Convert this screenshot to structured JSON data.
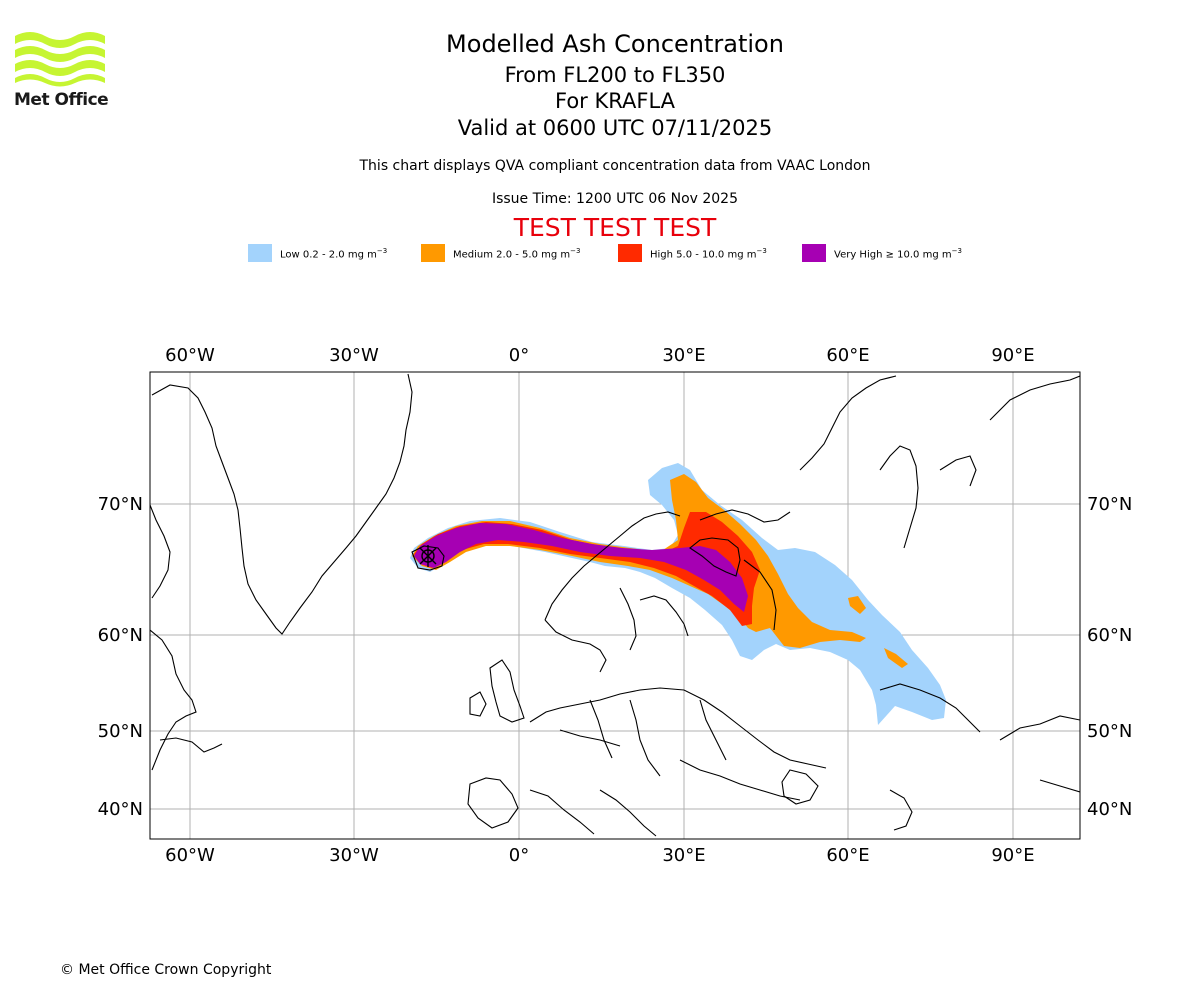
{
  "logo": {
    "text": "Met Office",
    "color": "#c6f532"
  },
  "title": "Modelled Ash Concentration",
  "subtitle_levels": "From FL200 to FL350",
  "subtitle_volcano": "For KRAFLA",
  "valid_time": "Valid at 0600 UTC 07/11/2025",
  "description": "This chart displays QVA compliant concentration data from VAAC London",
  "issue_time": "Issue Time: 1200 UTC 06 Nov 2025",
  "test_banner": "TEST TEST TEST",
  "legend": [
    {
      "label": "Low 0.2 - 2.0 mg m",
      "unit_exp": "−3",
      "color": "#a3d3fc"
    },
    {
      "label": "Medium 2.0 - 5.0 mg m",
      "unit_exp": "−3",
      "color": "#ff9900"
    },
    {
      "label": "High 5.0 - 10.0 mg m",
      "unit_exp": "−3",
      "color": "#ff2a00"
    },
    {
      "label": "Very High  ≥  10.0 mg m",
      "unit_exp": "−3",
      "color": "#a600b3"
    }
  ],
  "map": {
    "lon_labels": [
      "60°W",
      "30°W",
      "0°",
      "30°E",
      "60°E",
      "90°E"
    ],
    "lon_values": [
      -60,
      -30,
      0,
      30,
      60,
      90
    ],
    "lat_labels": [
      "70°N",
      "60°N",
      "50°N",
      "40°N"
    ],
    "lat_values": [
      70,
      60,
      50,
      40
    ],
    "lon_range": [
      -67,
      102
    ],
    "lat_range": [
      37,
      80
    ],
    "volcano": {
      "name": "KRAFLA",
      "lon": -16.8,
      "lat": 65.7
    }
  },
  "copyright": "© Met Office Crown Copyright"
}
